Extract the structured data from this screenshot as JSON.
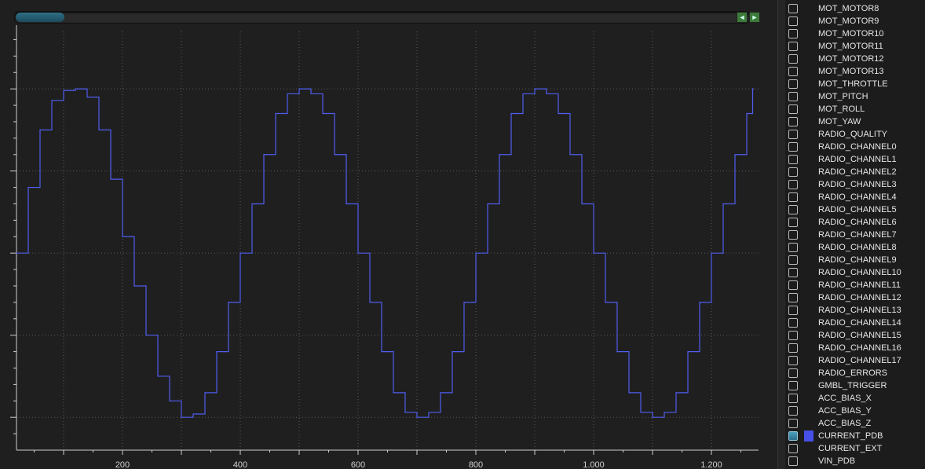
{
  "chart_data": {
    "type": "line",
    "xticks": [
      200,
      400,
      600,
      800,
      1000,
      1200
    ],
    "xtick_labels": [
      "200",
      "400",
      "600",
      "800",
      "1.000",
      "1.200"
    ],
    "xlim": [
      20,
      1280
    ],
    "ylim": [
      -1.2,
      1.35
    ],
    "grid": true,
    "series": [
      {
        "name": "CURRENT_PDB",
        "color": "#4f5ef0",
        "style": "step",
        "x": [
          20,
          40,
          60,
          80,
          100,
          120,
          140,
          160,
          180,
          200,
          220,
          240,
          260,
          280,
          300,
          320,
          340,
          360,
          380,
          400,
          420,
          440,
          460,
          480,
          500,
          520,
          540,
          560,
          580,
          600,
          620,
          640,
          660,
          680,
          700,
          720,
          740,
          760,
          780,
          800,
          820,
          840,
          860,
          880,
          900,
          920,
          940,
          960,
          980,
          1000,
          1020,
          1040,
          1060,
          1080,
          1100,
          1120,
          1140,
          1160,
          1180,
          1200,
          1220,
          1240,
          1260,
          1270
        ],
        "y": [
          0,
          0.4,
          0.75,
          0.93,
          0.99,
          1,
          0.95,
          0.75,
          0.45,
          0.1,
          -0.2,
          -0.5,
          -0.75,
          -0.9,
          -1,
          -0.98,
          -0.85,
          -0.6,
          -0.3,
          0,
          0.3,
          0.6,
          0.85,
          0.97,
          1,
          0.97,
          0.85,
          0.6,
          0.3,
          0,
          -0.3,
          -0.6,
          -0.85,
          -0.97,
          -1,
          -0.97,
          -0.85,
          -0.6,
          -0.3,
          0,
          0.3,
          0.6,
          0.85,
          0.97,
          1,
          0.97,
          0.85,
          0.6,
          0.3,
          0,
          -0.3,
          -0.6,
          -0.85,
          -0.97,
          -1,
          -0.97,
          -0.85,
          -0.6,
          -0.3,
          0,
          0.3,
          0.6,
          0.85,
          1.0
        ]
      }
    ]
  },
  "nav": {
    "prev_label": "◄",
    "next_label": "►"
  },
  "channels": [
    {
      "label": "MOT_MOTOR8",
      "checked": false
    },
    {
      "label": "MOT_MOTOR9",
      "checked": false
    },
    {
      "label": "MOT_MOTOR10",
      "checked": false
    },
    {
      "label": "MOT_MOTOR11",
      "checked": false
    },
    {
      "label": "MOT_MOTOR12",
      "checked": false
    },
    {
      "label": "MOT_MOTOR13",
      "checked": false
    },
    {
      "label": "MOT_THROTTLE",
      "checked": false
    },
    {
      "label": "MOT_PITCH",
      "checked": false
    },
    {
      "label": "MOT_ROLL",
      "checked": false
    },
    {
      "label": "MOT_YAW",
      "checked": false
    },
    {
      "label": "RADIO_QUALITY",
      "checked": false
    },
    {
      "label": "RADIO_CHANNEL0",
      "checked": false
    },
    {
      "label": "RADIO_CHANNEL1",
      "checked": false
    },
    {
      "label": "RADIO_CHANNEL2",
      "checked": false
    },
    {
      "label": "RADIO_CHANNEL3",
      "checked": false
    },
    {
      "label": "RADIO_CHANNEL4",
      "checked": false
    },
    {
      "label": "RADIO_CHANNEL5",
      "checked": false
    },
    {
      "label": "RADIO_CHANNEL6",
      "checked": false
    },
    {
      "label": "RADIO_CHANNEL7",
      "checked": false
    },
    {
      "label": "RADIO_CHANNEL8",
      "checked": false
    },
    {
      "label": "RADIO_CHANNEL9",
      "checked": false
    },
    {
      "label": "RADIO_CHANNEL10",
      "checked": false
    },
    {
      "label": "RADIO_CHANNEL11",
      "checked": false
    },
    {
      "label": "RADIO_CHANNEL12",
      "checked": false
    },
    {
      "label": "RADIO_CHANNEL13",
      "checked": false
    },
    {
      "label": "RADIO_CHANNEL14",
      "checked": false
    },
    {
      "label": "RADIO_CHANNEL15",
      "checked": false
    },
    {
      "label": "RADIO_CHANNEL16",
      "checked": false
    },
    {
      "label": "RADIO_CHANNEL17",
      "checked": false
    },
    {
      "label": "RADIO_ERRORS",
      "checked": false
    },
    {
      "label": "GMBL_TRIGGER",
      "checked": false
    },
    {
      "label": "ACC_BIAS_X",
      "checked": false
    },
    {
      "label": "ACC_BIAS_Y",
      "checked": false
    },
    {
      "label": "ACC_BIAS_Z",
      "checked": false
    },
    {
      "label": "CURRENT_PDB",
      "checked": true,
      "color": "#4750e6"
    },
    {
      "label": "CURRENT_EXT",
      "checked": false
    },
    {
      "label": "VIN_PDB",
      "checked": false
    }
  ],
  "colors": {
    "grid": "#5a5a5a",
    "axis": "#cfcfcf",
    "line": "#4f5ef0"
  }
}
